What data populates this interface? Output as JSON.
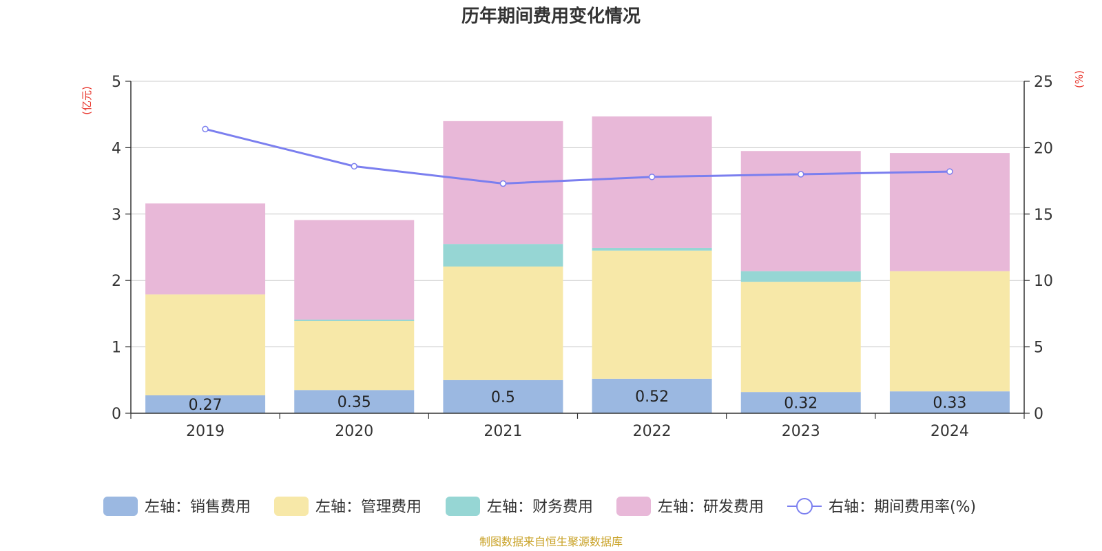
{
  "chart_data": {
    "type": "bar",
    "title": "历年期间费用变化情况",
    "categories": [
      "2019",
      "2020",
      "2021",
      "2022",
      "2023",
      "2024"
    ],
    "left_axis": {
      "unit": "(亿元)",
      "range": [
        0,
        5
      ],
      "ticks": [
        "0",
        "1",
        "2",
        "3",
        "4",
        "5"
      ]
    },
    "right_axis": {
      "unit": "(%)",
      "range": [
        0,
        25
      ],
      "ticks": [
        "0",
        "5",
        "10",
        "15",
        "20",
        "25"
      ]
    },
    "grid": true,
    "legend_position": "bottom",
    "stacked": true,
    "series": [
      {
        "name": "左轴：销售费用",
        "type": "bar",
        "axis": "left",
        "color": "#9bb8e1",
        "values": [
          0.27,
          0.35,
          0.5,
          0.52,
          0.32,
          0.33
        ],
        "labels": [
          "0.27",
          "0.35",
          "0.5",
          "0.52",
          "0.32",
          "0.33"
        ]
      },
      {
        "name": "左轴：管理费用",
        "type": "bar",
        "axis": "left",
        "color": "#f7e8a8",
        "values": [
          1.52,
          1.04,
          1.71,
          1.93,
          1.66,
          1.81
        ]
      },
      {
        "name": "左轴：财务费用",
        "type": "bar",
        "axis": "left",
        "color": "#96d6d4",
        "values": [
          0.0,
          0.02,
          0.34,
          0.04,
          0.16,
          0.0
        ]
      },
      {
        "name": "左轴：研发费用",
        "type": "bar",
        "axis": "left",
        "color": "#e8b8d8",
        "values": [
          1.37,
          1.5,
          1.85,
          1.98,
          1.81,
          1.78
        ]
      },
      {
        "name": "右轴：期间费用率(%)",
        "type": "line",
        "axis": "right",
        "color": "#7b7fef",
        "values": [
          21.4,
          18.6,
          17.3,
          17.8,
          18.0,
          18.2
        ]
      }
    ],
    "source": "制图数据来自恒生聚源数据库"
  },
  "colors": {
    "axis_unit": "#e8332a",
    "source_text": "#c9a227",
    "grid": "#cccccc",
    "axis_line": "#333333"
  }
}
